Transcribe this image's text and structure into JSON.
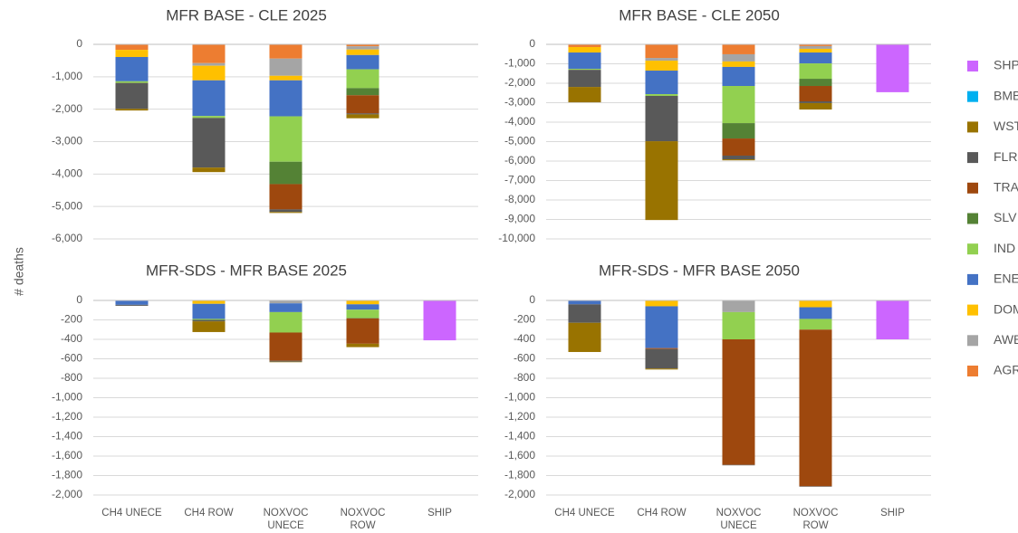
{
  "y_label": "# deaths",
  "legend": [
    {
      "name": "SHP",
      "color": "#cc66ff"
    },
    {
      "name": "BMB",
      "color": "#00b0f0"
    },
    {
      "name": "WST",
      "color": "#997300"
    },
    {
      "name": "FLR",
      "color": "#595959"
    },
    {
      "name": "TRA",
      "color": "#9e480e"
    },
    {
      "name": "SLV",
      "color": "#548235"
    },
    {
      "name": "IND",
      "color": "#92d050"
    },
    {
      "name": "ENE",
      "color": "#4472c4"
    },
    {
      "name": "DOM",
      "color": "#ffc000"
    },
    {
      "name": "AWB",
      "color": "#a5a5a5"
    },
    {
      "name": "AGR",
      "color": "#ed7d31"
    }
  ],
  "chart_data": [
    {
      "type": "bar",
      "title": "MFR BASE - CLE 2025",
      "ylim": [
        -6000,
        0
      ],
      "yticks": [
        0,
        {
          "value": -1000,
          "label": "-1,000"
        },
        {
          "value": -2000,
          "label": "-2,000"
        },
        {
          "value": -3000,
          "label": "-3,000"
        },
        {
          "value": -4000,
          "label": "-4,000"
        },
        {
          "value": -5000,
          "label": "-5,000"
        },
        {
          "value": -6000,
          "label": "-6,000"
        }
      ],
      "series": [
        {
          "name": "AGR",
          "values": [
            -170,
            -580,
            -440,
            -60,
            0
          ]
        },
        {
          "name": "AWB",
          "values": [
            0,
            -80,
            -530,
            -100,
            0
          ]
        },
        {
          "name": "DOM",
          "values": [
            -220,
            -450,
            -140,
            -170,
            0
          ]
        },
        {
          "name": "ENE",
          "values": [
            -750,
            -1100,
            -1110,
            -440,
            0
          ]
        },
        {
          "name": "IND",
          "values": [
            -50,
            -60,
            -1400,
            -580,
            0
          ]
        },
        {
          "name": "SLV",
          "values": [
            0,
            0,
            -690,
            -220,
            0
          ]
        },
        {
          "name": "TRA",
          "values": [
            0,
            0,
            -780,
            -560,
            0
          ]
        },
        {
          "name": "FLR",
          "values": [
            -800,
            -1530,
            -80,
            -30,
            0
          ]
        },
        {
          "name": "WST",
          "values": [
            -50,
            -140,
            -30,
            -120,
            0
          ]
        },
        {
          "name": "BMB",
          "values": [
            0,
            0,
            0,
            0,
            0
          ]
        },
        {
          "name": "SHP",
          "values": [
            0,
            0,
            0,
            0,
            0
          ]
        }
      ]
    },
    {
      "type": "bar",
      "title": "MFR BASE - CLE 2050",
      "ylim": [
        -10000,
        0
      ],
      "yticks": [
        0,
        {
          "value": -1000,
          "label": "-1,000"
        },
        {
          "value": -2000,
          "label": "-2,000"
        },
        {
          "value": -3000,
          "label": "-3,000"
        },
        {
          "value": -4000,
          "label": "-4,000"
        },
        {
          "value": -5000,
          "label": "-5,000"
        },
        {
          "value": -6000,
          "label": "-6,000"
        },
        {
          "value": -7000,
          "label": "-7,000"
        },
        {
          "value": -8000,
          "label": "-8,000"
        },
        {
          "value": -9000,
          "label": "-9,000"
        },
        {
          "value": -10000,
          "label": "-10,000"
        }
      ],
      "series": [
        {
          "name": "AGR",
          "values": [
            -140,
            -700,
            -510,
            -90,
            0
          ]
        },
        {
          "name": "AWB",
          "values": [
            0,
            -140,
            -370,
            -140,
            0
          ]
        },
        {
          "name": "DOM",
          "values": [
            -280,
            -510,
            -280,
            -190,
            0
          ]
        },
        {
          "name": "ENE",
          "values": [
            -840,
            -1210,
            -980,
            -560,
            0
          ]
        },
        {
          "name": "IND",
          "values": [
            -50,
            -90,
            -1910,
            -790,
            0
          ]
        },
        {
          "name": "SLV",
          "values": [
            0,
            0,
            -790,
            -370,
            0
          ]
        },
        {
          "name": "TRA",
          "values": [
            0,
            0,
            -880,
            -790,
            0
          ]
        },
        {
          "name": "FLR",
          "values": [
            -880,
            -2330,
            -190,
            -90,
            0
          ]
        },
        {
          "name": "WST",
          "values": [
            -790,
            -4050,
            -50,
            -330,
            0
          ]
        },
        {
          "name": "BMB",
          "values": [
            0,
            0,
            0,
            0,
            0
          ]
        },
        {
          "name": "SHP",
          "values": [
            0,
            0,
            0,
            0,
            -2460
          ]
        }
      ]
    },
    {
      "type": "bar",
      "title": "MFR-SDS - MFR BASE 2025",
      "categories": [
        "CH4 UNECE",
        "CH4 ROW",
        "NOXVOC UNECE",
        "NOXVOC ROW",
        "SHIP"
      ],
      "ylim": [
        -2000,
        0
      ],
      "yticks": [
        0,
        -200,
        -400,
        -600,
        -800,
        {
          "value": -1000,
          "label": "-1,000"
        },
        {
          "value": -1200,
          "label": "-1,200"
        },
        {
          "value": -1400,
          "label": "-1,400"
        },
        {
          "value": -1600,
          "label": "-1,600"
        },
        {
          "value": -1800,
          "label": "-1,800"
        },
        {
          "value": -2000,
          "label": "-2,000"
        }
      ],
      "series": [
        {
          "name": "AGR",
          "values": [
            0,
            0,
            0,
            0,
            0
          ]
        },
        {
          "name": "AWB",
          "values": [
            0,
            0,
            -30,
            0,
            0
          ]
        },
        {
          "name": "DOM",
          "values": [
            0,
            -35,
            0,
            -40,
            0
          ]
        },
        {
          "name": "ENE",
          "values": [
            -45,
            -155,
            -90,
            -55,
            0
          ]
        },
        {
          "name": "IND",
          "values": [
            0,
            -10,
            -210,
            -85,
            0
          ]
        },
        {
          "name": "SLV",
          "values": [
            0,
            0,
            0,
            -5,
            0
          ]
        },
        {
          "name": "TRA",
          "values": [
            0,
            0,
            -290,
            -260,
            0
          ]
        },
        {
          "name": "FLR",
          "values": [
            -10,
            -15,
            -10,
            0,
            0
          ]
        },
        {
          "name": "WST",
          "values": [
            0,
            -110,
            -5,
            -35,
            0
          ]
        },
        {
          "name": "BMB",
          "values": [
            0,
            0,
            0,
            0,
            0
          ]
        },
        {
          "name": "SHP",
          "values": [
            0,
            0,
            0,
            0,
            -410
          ]
        }
      ]
    },
    {
      "type": "bar",
      "title": "MFR-SDS - MFR BASE 2050",
      "categories": [
        "CH4 UNECE",
        "CH4 ROW",
        "NOXVOC UNECE",
        "NOXVOC ROW",
        "SHIP"
      ],
      "ylim": [
        -2000,
        0
      ],
      "yticks": [
        0,
        -200,
        -400,
        -600,
        -800,
        {
          "value": -1000,
          "label": "-1,000"
        },
        {
          "value": -1200,
          "label": "-1,200"
        },
        {
          "value": -1400,
          "label": "-1,400"
        },
        {
          "value": -1600,
          "label": "-1,600"
        },
        {
          "value": -1800,
          "label": "-1,800"
        },
        {
          "value": -2000,
          "label": "-2,000"
        }
      ],
      "series": [
        {
          "name": "AGR",
          "values": [
            0,
            0,
            0,
            0,
            0
          ]
        },
        {
          "name": "AWB",
          "values": [
            0,
            0,
            -120,
            0,
            0
          ]
        },
        {
          "name": "DOM",
          "values": [
            0,
            -60,
            0,
            -70,
            0
          ]
        },
        {
          "name": "ENE",
          "values": [
            -40,
            -430,
            0,
            -120,
            0
          ]
        },
        {
          "name": "IND",
          "values": [
            0,
            0,
            -280,
            -110,
            0
          ]
        },
        {
          "name": "SLV",
          "values": [
            0,
            0,
            0,
            0,
            0
          ]
        },
        {
          "name": "TRA",
          "values": [
            0,
            -10,
            -1290,
            -1610,
            0
          ]
        },
        {
          "name": "FLR",
          "values": [
            -190,
            -200,
            -5,
            -5,
            0
          ]
        },
        {
          "name": "WST",
          "values": [
            -300,
            -10,
            0,
            0,
            0
          ]
        },
        {
          "name": "BMB",
          "values": [
            0,
            0,
            0,
            0,
            0
          ]
        },
        {
          "name": "SHP",
          "values": [
            0,
            0,
            0,
            0,
            -400
          ]
        }
      ]
    }
  ]
}
